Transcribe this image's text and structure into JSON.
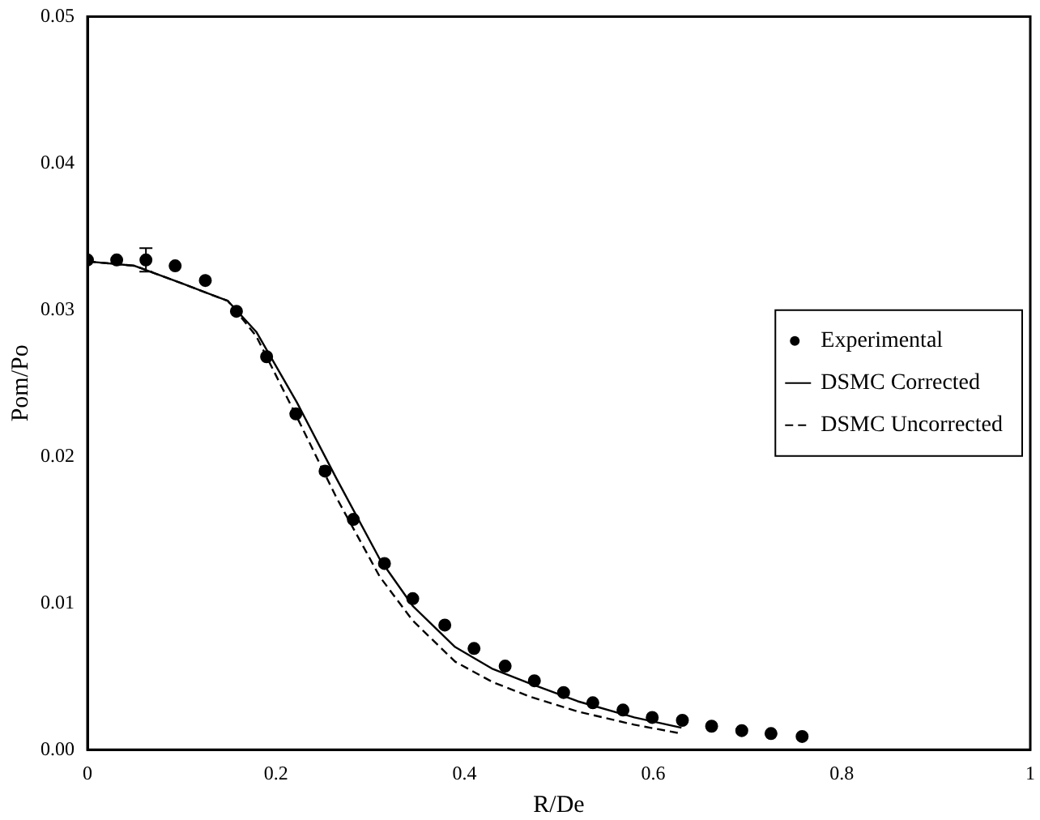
{
  "chart_data": {
    "type": "scatter",
    "xlabel": "R/De",
    "ylabel": "Pom/Po",
    "xlim": [
      0,
      1
    ],
    "xticks": [
      {
        "value": 0,
        "label": "0"
      },
      0.2,
      0.4,
      0.6,
      0.8,
      {
        "value": 1,
        "label": "1"
      }
    ],
    "ylim": [
      0,
      0.05
    ],
    "yticks": [
      {
        "value": 0,
        "label": "0.00"
      },
      {
        "value": 0.01,
        "label": "0.01"
      },
      {
        "value": 0.02,
        "label": "0.02"
      },
      {
        "value": 0.03,
        "label": "0.03"
      },
      {
        "value": 0.04,
        "label": "0.04"
      },
      {
        "value": 0.05,
        "label": "0.05"
      }
    ],
    "grid": false,
    "legend": "right",
    "series": [
      {
        "name": "Experimental",
        "type": "scatter",
        "color": "#000000",
        "marker": "circle",
        "x": [
          0,
          0.031,
          0.062,
          0.093,
          0.125,
          0.158,
          0.19,
          0.221,
          0.252,
          0.282,
          0.315,
          0.345,
          0.379,
          0.41,
          0.443,
          0.474,
          0.505,
          0.536,
          0.568,
          0.599,
          0.631,
          0.662,
          0.694,
          0.725,
          0.758
        ],
        "values": [
          0.0334,
          0.0334,
          0.0334,
          0.033,
          0.032,
          0.0299,
          0.0268,
          0.0229,
          0.019,
          0.0157,
          0.0127,
          0.0103,
          0.0085,
          0.0069,
          0.0057,
          0.0047,
          0.0039,
          0.0032,
          0.0027,
          0.0022,
          0.002,
          0.0016,
          0.0013,
          0.0011,
          0.0009
        ],
        "errors": [
          null,
          null,
          0.0008,
          null,
          null,
          null,
          null,
          null,
          null,
          null,
          null,
          null,
          null,
          null,
          null,
          null,
          null,
          null,
          null,
          null,
          null,
          null,
          null,
          null,
          null
        ]
      },
      {
        "name": "DSMC Corrected",
        "type": "line",
        "color": "#000000",
        "marker": "none",
        "line_style": "solid",
        "x": [
          0,
          0.05,
          0.1,
          0.149,
          0.179,
          0.222,
          0.264,
          0.31,
          0.345,
          0.39,
          0.43,
          0.47,
          0.52,
          0.58,
          0.63
        ],
        "values": [
          0.0333,
          0.033,
          0.0318,
          0.0306,
          0.0285,
          0.0237,
          0.0185,
          0.013,
          0.0098,
          0.007,
          0.0055,
          0.0045,
          0.0033,
          0.0022,
          0.0015
        ]
      },
      {
        "name": "DSMC Uncorrected",
        "type": "line",
        "color": "#000000",
        "marker": "none",
        "line_style": "dashed",
        "x": [
          0,
          0.05,
          0.1,
          0.149,
          0.179,
          0.222,
          0.264,
          0.31,
          0.345,
          0.39,
          0.43,
          0.47,
          0.52,
          0.58,
          0.63
        ],
        "values": [
          0.0333,
          0.033,
          0.0318,
          0.0306,
          0.0282,
          0.0227,
          0.0172,
          0.0118,
          0.0088,
          0.006,
          0.0046,
          0.0036,
          0.0026,
          0.0017,
          0.0011
        ]
      }
    ]
  }
}
